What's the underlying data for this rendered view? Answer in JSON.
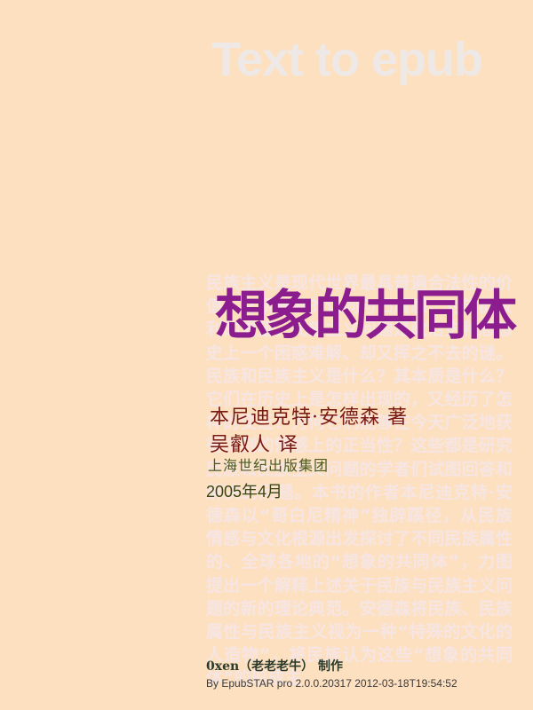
{
  "cover": {
    "watermark_title": "Text to epub",
    "background_text": "民族主义是现代世界最具普遍合法性的价值，它所激发的认同与归属感，对族群权利的渴望，民族主义问题是政治史和思想史上一个困惑难解、却又挥之不去的谜。民族和民族主义是什么？其本质是什么？它们在历史上是怎样出现的，又经历了怎样的变迁？为何它们能够在今天广泛地获得深刻的情感上的正当性？这些都是研究民族和民族主义问题的学者们试图回答和解决的问题。本书的作者本尼迪克特·安德森以“哥白尼精神”独辟蹊径，从民族情感与文化根源出发探讨了不同民族属性的、全球各地的“想象的共同体”，力图提出一个解释上述关于民族与民族主义问题的新的理论典范。安德森将民族、民族属性与民族主义视为一种“特殊的文化的人造物”，将民族认为这些“想象的共同体”的形成主",
    "book_title": "想象的共同体",
    "author_line": "本尼迪克特·安德森  著",
    "translator_line": "吴叡人  译",
    "publisher": "上海世纪出版集团",
    "date": "2005年4月",
    "maker_line": "0xen（老老老牛） 制作",
    "credit_line": "By EpubSTAR pro 2.0.0.20317 2012-03-18T19:54:52"
  }
}
